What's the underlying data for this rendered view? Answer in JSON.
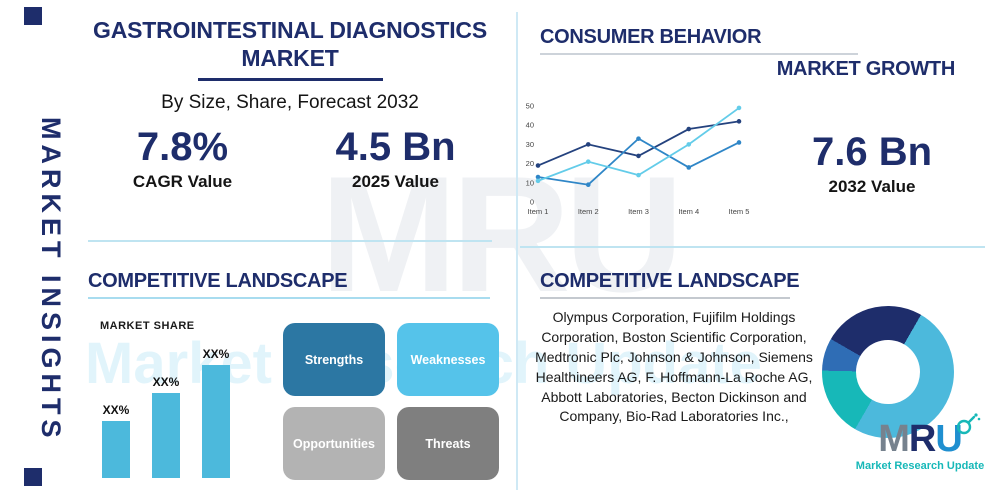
{
  "sidebar": {
    "label": "MARKET INSIGHTS"
  },
  "header": {
    "title_line1": "GASTROINTESTINAL DIAGNOSTICS",
    "title_line2": "MARKET",
    "subtitle": "By Size, Share, Forecast 2032"
  },
  "stats": {
    "cagr_value": "7.8%",
    "cagr_label": "CAGR Value",
    "value_2025": "4.5 Bn",
    "label_2025": "2025 Value",
    "value_2032": "7.6 Bn",
    "label_2032": "2032 Value"
  },
  "sections": {
    "consumer_behavior": "CONSUMER BEHAVIOR",
    "market_growth": "MARKET GROWTH",
    "competitive_landscape_left": "COMPETITIVE LANDSCAPE",
    "competitive_landscape_right": "COMPETITIVE LANDSCAPE",
    "market_share": "MARKET SHARE"
  },
  "swot": {
    "labels": [
      "Strengths",
      "Weaknesses",
      "Opportunities",
      "Threats"
    ],
    "colors": [
      "#2c77a3",
      "#55c3ea",
      "#b3b3b3",
      "#7f7f7f"
    ]
  },
  "companies": "Olympus Corporation, Fujifilm Holdings Corporation, Boston Scientific Corporation, Medtronic Plc, Johnson & Johnson, Siemens Healthineers AG, F. Hoffmann-La Roche AG, Abbott Laboratories, Becton Dickinson and Company, Bio-Rad Laboratories Inc.,",
  "logo": {
    "letters": [
      "M",
      "R",
      "U"
    ],
    "letter_colors": [
      "#76828e",
      "#1e2d6b",
      "#1f8fd0"
    ],
    "tagline": "Market Research Update",
    "tagline_color": "#17b8b8"
  },
  "watermark": {
    "primary": "MRU",
    "secondary": "Market Research Update"
  },
  "colors": {
    "navy": "#1e2d6b",
    "cyan": "#4cb9dc",
    "teal": "#17b8b8",
    "divider_blue": "#bfe4f1",
    "divider_gray": "#cdd3da"
  },
  "chart_data": [
    {
      "type": "line",
      "title": "MARKET GROWTH",
      "x": [
        "Item 1",
        "Item 2",
        "Item 3",
        "Item 4",
        "Item 5"
      ],
      "series": [
        {
          "name": "series-1",
          "color": "#24427e",
          "values": [
            19,
            30,
            24,
            38,
            42
          ]
        },
        {
          "name": "series-2",
          "color": "#2f86c7",
          "values": [
            13,
            9,
            33,
            18,
            31
          ]
        },
        {
          "name": "series-3",
          "color": "#63cce9",
          "values": [
            11,
            21,
            14,
            30,
            49
          ]
        }
      ],
      "xlabel": "",
      "ylabel": "",
      "ylim": [
        0,
        50
      ],
      "yticks": [
        0,
        10,
        20,
        30,
        40,
        50
      ],
      "legend": false
    },
    {
      "type": "bar",
      "title": "MARKET SHARE",
      "categories": [
        "",
        "",
        ""
      ],
      "values": [
        30,
        45,
        60
      ],
      "bar_labels": [
        "XX%",
        "XX%",
        "XX%"
      ],
      "color": "#4cb9dc",
      "xlabel": "",
      "ylabel": "",
      "ylim": [
        0,
        65
      ]
    },
    {
      "type": "pie",
      "donut": true,
      "start_angle": -60,
      "slices": [
        {
          "name": "slice-navy",
          "value": 25,
          "color": "#1e2d6b"
        },
        {
          "name": "slice-lightblue",
          "value": 50,
          "color": "#4cb9dc"
        },
        {
          "name": "slice-teal",
          "value": 17,
          "color": "#17b8b8"
        },
        {
          "name": "slice-blue",
          "value": 8,
          "color": "#2f6db5"
        }
      ]
    }
  ]
}
